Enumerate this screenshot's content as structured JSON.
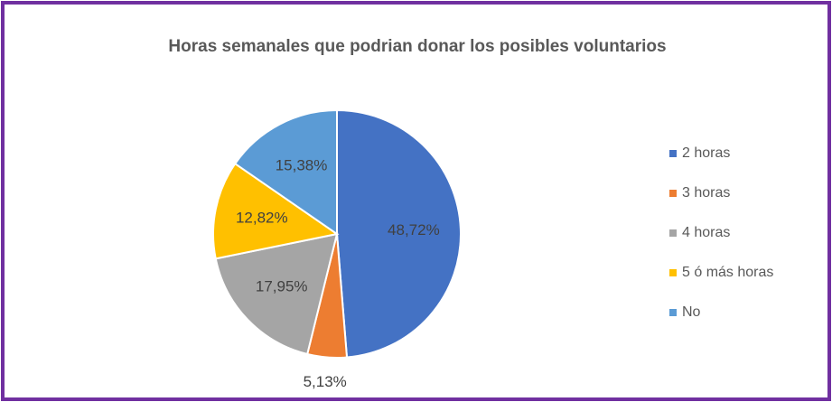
{
  "chart_data": {
    "type": "pie",
    "title": "Horas semanales que podrian donar los posibles voluntarios",
    "categories": [
      "2 horas",
      "3 horas",
      "4 horas",
      "5 ó más horas",
      "No"
    ],
    "values": [
      48.72,
      5.13,
      17.95,
      12.82,
      15.38
    ],
    "value_labels": [
      "48,72%",
      "5,13%",
      "17,95%",
      "12,82%",
      "15,38%"
    ],
    "colors": [
      "#4472c4",
      "#ed7d31",
      "#a5a5a5",
      "#ffc000",
      "#5b9bd5"
    ],
    "legend": "right"
  }
}
